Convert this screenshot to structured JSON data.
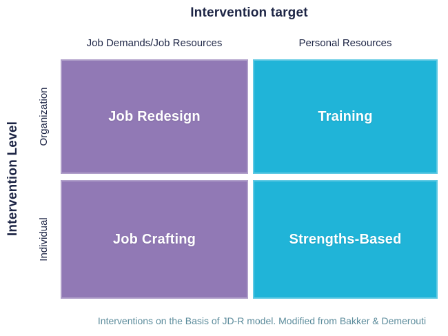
{
  "title": "Intervention target",
  "y_axis_title": "Intervention Level",
  "columns": [
    "Job Demands/Job Resources",
    "Personal Resources"
  ],
  "rows": [
    "Organization",
    "Individual"
  ],
  "quadrants": [
    {
      "row": "Organization",
      "column": "Job Demands/Job Resources",
      "label": "Job Redesign",
      "color": "#9179b5"
    },
    {
      "row": "Organization",
      "column": "Personal Resources",
      "label": "Training",
      "color": "#20b4d8"
    },
    {
      "row": "Individual",
      "column": "Job Demands/Job Resources",
      "label": "Job Crafting",
      "color": "#9179b5"
    },
    {
      "row": "Individual",
      "column": "Personal Resources",
      "label": "Strengths-Based",
      "color": "#20b4d8"
    }
  ],
  "caption": "Interventions on the Basis of JD-R model. Modified from Bakker & Demerouti",
  "colors": {
    "purple": "#9179b5",
    "teal": "#20b4d8",
    "heading_text": "#1d2545",
    "cell_text": "#ffffff",
    "caption_text": "#5b8b9b",
    "background": "#ffffff"
  }
}
